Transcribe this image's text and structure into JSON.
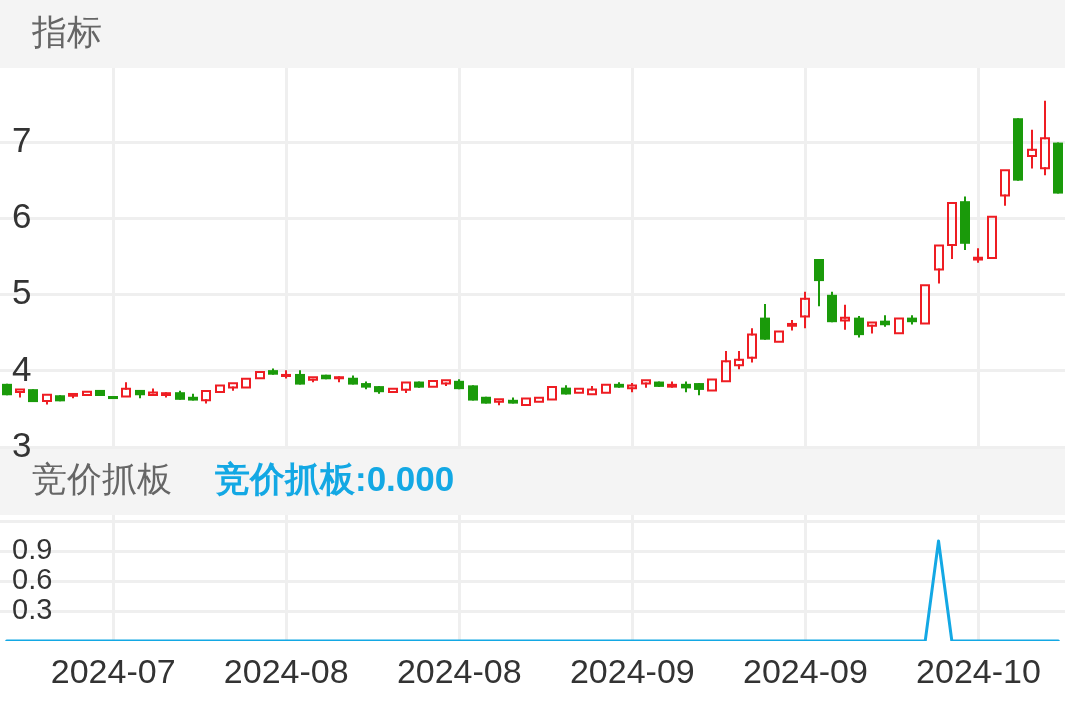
{
  "chart_data": [
    {
      "type": "candlestick",
      "title": "指标",
      "categories": [
        null,
        null,
        null,
        null,
        null,
        null,
        null,
        null,
        "2024-07",
        null,
        null,
        null,
        null,
        null,
        null,
        null,
        null,
        null,
        null,
        null,
        null,
        "2024-08",
        null,
        null,
        null,
        null,
        null,
        null,
        null,
        null,
        null,
        null,
        null,
        null,
        "2024-08",
        null,
        null,
        null,
        null,
        null,
        null,
        null,
        null,
        null,
        null,
        null,
        null,
        "2024-09",
        null,
        null,
        null,
        null,
        null,
        null,
        null,
        null,
        null,
        null,
        null,
        null,
        "2024-09",
        null,
        null,
        null,
        null,
        null,
        null,
        null,
        null,
        null,
        null,
        null,
        null,
        "2024-10",
        null,
        null,
        null,
        null,
        null,
        null
      ],
      "ohlc": [
        [
          3.83,
          3.83,
          3.68,
          3.68
        ],
        [
          3.71,
          3.77,
          3.65,
          3.77
        ],
        [
          3.76,
          3.76,
          3.59,
          3.59
        ],
        [
          3.59,
          3.7,
          3.56,
          3.7
        ],
        [
          3.68,
          3.68,
          3.6,
          3.6
        ],
        [
          3.66,
          3.71,
          3.64,
          3.71
        ],
        [
          3.67,
          3.74,
          3.67,
          3.74
        ],
        [
          3.75,
          3.75,
          3.67,
          3.67
        ],
        [
          3.67,
          3.67,
          3.63,
          3.63
        ],
        [
          3.65,
          3.85,
          3.65,
          3.78
        ],
        [
          3.75,
          3.75,
          3.64,
          3.68
        ],
        [
          3.67,
          3.77,
          3.67,
          3.73
        ],
        [
          3.67,
          3.72,
          3.65,
          3.72
        ],
        [
          3.72,
          3.74,
          3.62,
          3.62
        ],
        [
          3.66,
          3.7,
          3.61,
          3.61
        ],
        [
          3.6,
          3.75,
          3.57,
          3.75
        ],
        [
          3.71,
          3.82,
          3.71,
          3.82
        ],
        [
          3.77,
          3.85,
          3.74,
          3.85
        ],
        [
          3.77,
          3.91,
          3.77,
          3.91
        ],
        [
          3.89,
          4.0,
          3.89,
          4.0
        ],
        [
          4.01,
          4.03,
          3.95,
          3.95
        ],
        [
          3.92,
          4.01,
          3.9,
          3.96
        ],
        [
          3.96,
          4.01,
          3.82,
          3.82
        ],
        [
          3.87,
          3.93,
          3.85,
          3.93
        ],
        [
          3.95,
          3.95,
          3.89,
          3.89
        ],
        [
          3.89,
          3.93,
          3.85,
          3.93
        ],
        [
          3.91,
          3.94,
          3.82,
          3.82
        ],
        [
          3.84,
          3.86,
          3.76,
          3.78
        ],
        [
          3.8,
          3.8,
          3.7,
          3.72
        ],
        [
          3.71,
          3.78,
          3.71,
          3.78
        ],
        [
          3.74,
          3.86,
          3.71,
          3.86
        ],
        [
          3.86,
          3.86,
          3.78,
          3.78
        ],
        [
          3.78,
          3.88,
          3.78,
          3.88
        ],
        [
          3.82,
          3.89,
          3.8,
          3.89
        ],
        [
          3.87,
          3.89,
          3.76,
          3.76
        ],
        [
          3.81,
          3.81,
          3.61,
          3.61
        ],
        [
          3.66,
          3.66,
          3.57,
          3.57
        ],
        [
          3.58,
          3.64,
          3.55,
          3.64
        ],
        [
          3.62,
          3.65,
          3.57,
          3.57
        ],
        [
          3.54,
          3.65,
          3.54,
          3.65
        ],
        [
          3.58,
          3.66,
          3.58,
          3.66
        ],
        [
          3.61,
          3.8,
          3.61,
          3.8
        ],
        [
          3.78,
          3.81,
          3.69,
          3.69
        ],
        [
          3.7,
          3.78,
          3.7,
          3.78
        ],
        [
          3.68,
          3.8,
          3.68,
          3.77
        ],
        [
          3.7,
          3.83,
          3.7,
          3.83
        ],
        [
          3.83,
          3.85,
          3.78,
          3.78
        ],
        [
          3.76,
          3.84,
          3.72,
          3.82
        ],
        [
          3.82,
          3.89,
          3.78,
          3.89
        ],
        [
          3.86,
          3.86,
          3.79,
          3.79
        ],
        [
          3.78,
          3.86,
          3.78,
          3.83
        ],
        [
          3.83,
          3.86,
          3.72,
          3.77
        ],
        [
          3.84,
          3.84,
          3.68,
          3.75
        ],
        [
          3.73,
          3.9,
          3.73,
          3.9
        ],
        [
          3.85,
          4.26,
          3.85,
          4.14
        ],
        [
          4.06,
          4.26,
          4.02,
          4.16
        ],
        [
          4.16,
          4.56,
          4.11,
          4.49
        ],
        [
          4.7,
          4.88,
          4.41,
          4.41
        ],
        [
          4.37,
          4.53,
          4.37,
          4.53
        ],
        [
          4.58,
          4.67,
          4.53,
          4.63
        ],
        [
          4.7,
          5.04,
          4.56,
          4.96
        ],
        [
          5.47,
          5.47,
          4.85,
          5.18
        ],
        [
          5.0,
          5.04,
          4.64,
          4.64
        ],
        [
          4.65,
          4.87,
          4.54,
          4.71
        ],
        [
          4.7,
          4.72,
          4.44,
          4.47
        ],
        [
          4.58,
          4.65,
          4.49,
          4.65
        ],
        [
          4.66,
          4.73,
          4.58,
          4.6
        ],
        [
          4.48,
          4.7,
          4.48,
          4.7
        ],
        [
          4.7,
          4.73,
          4.61,
          4.64
        ],
        [
          4.61,
          5.14,
          4.61,
          5.14
        ],
        [
          5.32,
          5.66,
          5.15,
          5.66
        ],
        [
          5.64,
          6.22,
          5.47,
          6.22
        ],
        [
          6.23,
          6.29,
          5.59,
          5.67
        ],
        [
          5.45,
          5.61,
          5.42,
          5.5
        ],
        [
          5.47,
          6.04,
          5.47,
          6.04
        ],
        [
          6.29,
          6.65,
          6.17,
          6.65
        ],
        [
          7.32,
          7.32,
          6.5,
          6.5
        ],
        [
          6.81,
          7.17,
          6.66,
          6.92
        ],
        [
          6.65,
          7.55,
          6.57,
          7.07
        ],
        [
          7.0,
          7.0,
          6.33,
          6.33
        ]
      ],
      "colors": [
        "#1a9a0a",
        "#ee1d23",
        "#1a9a0a",
        "#ee1d23",
        "#1a9a0a",
        "#ee1d23",
        "#ee1d23",
        "#1a9a0a",
        "#1a9a0a",
        "#ee1d23",
        "#1a9a0a",
        "#ee1d23",
        "#ee1d23",
        "#1a9a0a",
        "#1a9a0a",
        "#ee1d23",
        "#ee1d23",
        "#ee1d23",
        "#ee1d23",
        "#ee1d23",
        "#1a9a0a",
        "#ee1d23",
        "#1a9a0a",
        "#ee1d23",
        "#1a9a0a",
        "#ee1d23",
        "#1a9a0a",
        "#1a9a0a",
        "#1a9a0a",
        "#ee1d23",
        "#ee1d23",
        "#1a9a0a",
        "#ee1d23",
        "#ee1d23",
        "#1a9a0a",
        "#1a9a0a",
        "#1a9a0a",
        "#ee1d23",
        "#1a9a0a",
        "#ee1d23",
        "#ee1d23",
        "#ee1d23",
        "#1a9a0a",
        "#ee1d23",
        "#ee1d23",
        "#ee1d23",
        "#1a9a0a",
        "#ee1d23",
        "#ee1d23",
        "#1a9a0a",
        "#ee1d23",
        "#1a9a0a",
        "#1a9a0a",
        "#ee1d23",
        "#ee1d23",
        "#ee1d23",
        "#ee1d23",
        "#1a9a0a",
        "#ee1d23",
        "#ee1d23",
        "#ee1d23",
        "#1a9a0a",
        "#1a9a0a",
        "#ee1d23",
        "#1a9a0a",
        "#ee1d23",
        "#1a9a0a",
        "#ee1d23",
        "#1a9a0a",
        "#ee1d23",
        "#ee1d23",
        "#ee1d23",
        "#1a9a0a",
        "#ee1d23",
        "#ee1d23",
        "#ee1d23",
        "#1a9a0a",
        "#ee1d23",
        "#ee1d23",
        "#1a9a0a"
      ],
      "ylim": [
        3,
        7.98
      ],
      "yticks": [
        3,
        4,
        5,
        6,
        7
      ],
      "grid": true,
      "tick_labels": "y"
    },
    {
      "type": "line",
      "title": "竞价抓板",
      "subtitle": "竞价抓板:0.000",
      "categories": [
        null,
        null,
        null,
        null,
        null,
        null,
        null,
        null,
        "2024-07",
        null,
        null,
        null,
        null,
        null,
        null,
        null,
        null,
        null,
        null,
        null,
        null,
        "2024-08",
        null,
        null,
        null,
        null,
        null,
        null,
        null,
        null,
        null,
        null,
        null,
        null,
        "2024-08",
        null,
        null,
        null,
        null,
        null,
        null,
        null,
        null,
        null,
        null,
        null,
        null,
        "2024-09",
        null,
        null,
        null,
        null,
        null,
        null,
        null,
        null,
        null,
        null,
        null,
        null,
        "2024-09",
        null,
        null,
        null,
        null,
        null,
        null,
        null,
        null,
        null,
        null,
        null,
        null,
        "2024-10",
        null,
        null,
        null,
        null,
        null,
        null
      ],
      "values": [
        0,
        0,
        0,
        0,
        0,
        0,
        0,
        0,
        0,
        0,
        0,
        0,
        0,
        0,
        0,
        0,
        0,
        0,
        0,
        0,
        0,
        0,
        0,
        0,
        0,
        0,
        0,
        0,
        0,
        0,
        0,
        0,
        0,
        0,
        0,
        0,
        0,
        0,
        0,
        0,
        0,
        0,
        0,
        0,
        0,
        0,
        0,
        0,
        0,
        0,
        0,
        0,
        0,
        0,
        0,
        0,
        0,
        0,
        0,
        0,
        0,
        0,
        0,
        0,
        0,
        0,
        0,
        0,
        0,
        0,
        1,
        0,
        0,
        0,
        0,
        0,
        0,
        0,
        0,
        0
      ],
      "color": "#13a8e4",
      "ylim": [
        0,
        1.26
      ],
      "yticks": [
        0.3,
        0.6,
        0.9,
        {
          "value": 1.2,
          "label": null
        }
      ],
      "grid": true
    }
  ]
}
